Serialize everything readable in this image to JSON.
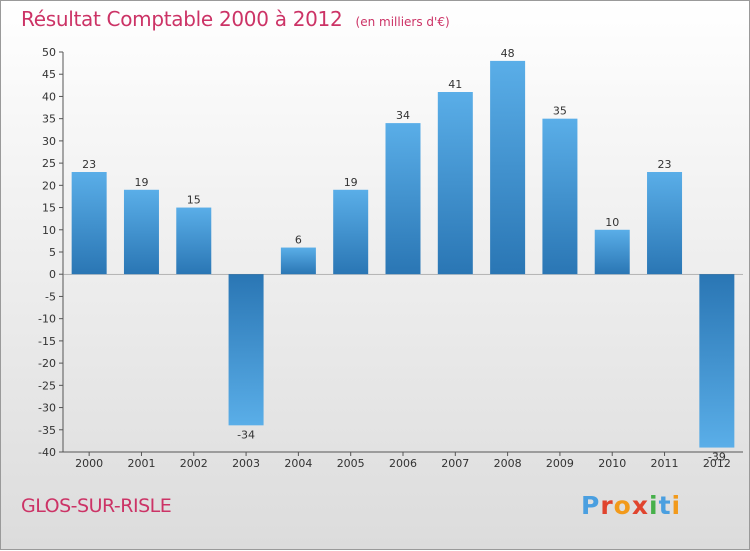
{
  "header": {
    "title": "Résultat Comptable 2000 à 2012",
    "subtitle": "(en milliers d'€)"
  },
  "footer": {
    "place": "GLOS-SUR-RISLE",
    "brand_letters": [
      "P",
      "r",
      "o",
      "x",
      "i",
      "t",
      "i"
    ],
    "brand_colors": [
      "#4a9fe0",
      "#e0442e",
      "#f29a1b",
      "#e0442e",
      "#46b04a",
      "#4a9fe0",
      "#f29a1b"
    ]
  },
  "chart_data": {
    "type": "bar",
    "title": "Résultat Comptable 2000 à 2012",
    "subtitle": "(en milliers d'€)",
    "categories": [
      "2000",
      "2001",
      "2002",
      "2003",
      "2004",
      "2005",
      "2006",
      "2007",
      "2008",
      "2009",
      "2010",
      "2011",
      "2012"
    ],
    "values": [
      23,
      19,
      15,
      -34,
      6,
      19,
      34,
      41,
      48,
      35,
      10,
      23,
      -39
    ],
    "labels": [
      "23",
      "19",
      "15",
      "-34",
      "6",
      "19",
      "34",
      "41",
      "48",
      "35",
      "10",
      "23",
      "-39"
    ],
    "ylim": [
      -40,
      50
    ],
    "yticks": [
      50,
      45,
      40,
      35,
      30,
      25,
      20,
      15,
      10,
      5,
      0,
      -5,
      -10,
      -15,
      -20,
      -25,
      -30,
      -35,
      -40
    ],
    "xlabel": "",
    "ylabel": "",
    "grid": false,
    "bar_color": "#3f93d6",
    "bar_color_light": "#5aaee8",
    "bar_color_dark": "#2a76b4"
  }
}
